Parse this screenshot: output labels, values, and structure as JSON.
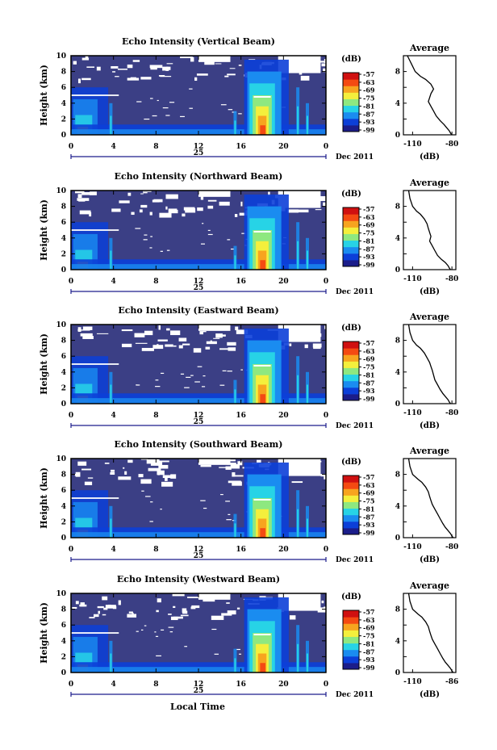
{
  "figure": {
    "month_label": "Dec 2011",
    "x_axis_title": "Local Time",
    "y_axis_title": "Height (km)",
    "cbar_units": "(dB)",
    "avg_xlabel": "(dB)",
    "colors": [
      "#1b1d8a",
      "#0c3fd8",
      "#1a8cf0",
      "#27d3e6",
      "#8ee880",
      "#f4ef3c",
      "#f7a41f",
      "#f44a12",
      "#d01010"
    ],
    "background": "#3b3f85"
  },
  "chart_data": [
    {
      "type": "heatmap",
      "title": "Echo Intensity (Vertical Beam)",
      "xticks": [
        "0",
        "4",
        "8",
        "12",
        "16",
        "20",
        "0"
      ],
      "xlim": [
        0,
        24
      ],
      "date_label": "25",
      "ylabel": "Height (km)",
      "yticks": [
        "0",
        "2",
        "4",
        "6",
        "8",
        "10"
      ],
      "ylim": [
        0,
        10
      ],
      "colorbar": {
        "label": "(dB)",
        "ticks": [
          "-57",
          "-63",
          "-69",
          "-75",
          "-81",
          "-87",
          "-93",
          "-99"
        ]
      },
      "average": {
        "title": "Average",
        "xlabel": "(dB)",
        "xticks": [
          "-110",
          "-80"
        ],
        "x": [
          -114,
          -111,
          -108,
          -104,
          -100,
          -96,
          -94,
          -96,
          -97,
          -98,
          -96,
          -94,
          -92,
          -89,
          -86,
          -84,
          -82,
          -81,
          -80
        ],
        "y": [
          10,
          9,
          8,
          7.4,
          7,
          6.4,
          5.8,
          5.2,
          4.7,
          4.2,
          3.6,
          3,
          2.4,
          1.8,
          1.3,
          0.9,
          0.5,
          0.2,
          0
        ]
      }
    },
    {
      "type": "heatmap",
      "title": "Echo Intensity (Northward Beam)",
      "xticks": [
        "0",
        "4",
        "8",
        "12",
        "16",
        "20",
        "0"
      ],
      "xlim": [
        0,
        24
      ],
      "date_label": "25",
      "ylabel": "Height (km)",
      "yticks": [
        "0",
        "2",
        "4",
        "6",
        "8",
        "10"
      ],
      "ylim": [
        0,
        10
      ],
      "colorbar": {
        "label": "(dB)",
        "ticks": [
          "-57",
          "-63",
          "-69",
          "-75",
          "-81",
          "-87",
          "-93",
          "-99"
        ]
      },
      "average": {
        "title": "Average",
        "xlabel": "(dB)",
        "xticks": [
          "-110",
          "-80"
        ],
        "x": [
          -113,
          -112,
          -110,
          -107,
          -104,
          -101,
          -99,
          -98,
          -97,
          -96,
          -97,
          -95,
          -93,
          -91,
          -88,
          -85,
          -83,
          -82,
          -81
        ],
        "y": [
          10,
          9,
          8,
          7.4,
          7,
          6.4,
          5.8,
          5.2,
          4.7,
          4.2,
          3.6,
          3,
          2.4,
          1.8,
          1.3,
          0.9,
          0.5,
          0.2,
          0
        ]
      }
    },
    {
      "type": "heatmap",
      "title": "Echo Intensity (Eastward Beam)",
      "xticks": [
        "0",
        "4",
        "8",
        "12",
        "16",
        "20",
        "0"
      ],
      "xlim": [
        0,
        24
      ],
      "date_label": "25",
      "ylabel": "Height (km)",
      "yticks": [
        "0",
        "2",
        "4",
        "6",
        "8",
        "10"
      ],
      "ylim": [
        0,
        10
      ],
      "colorbar": {
        "label": "(dB)",
        "ticks": [
          "-57",
          "-63",
          "-69",
          "-75",
          "-81",
          "-87",
          "-93",
          "-99"
        ]
      },
      "average": {
        "title": "Average",
        "xlabel": "(dB)",
        "xticks": [
          "-110",
          "-80"
        ],
        "x": [
          -113,
          -112,
          -110,
          -107,
          -104,
          -101,
          -99,
          -97,
          -96,
          -95,
          -94,
          -93,
          -91,
          -89,
          -87,
          -85,
          -83,
          -82,
          -81
        ],
        "y": [
          10,
          9,
          8,
          7.4,
          7,
          6.4,
          5.8,
          5.2,
          4.7,
          4.2,
          3.6,
          3,
          2.4,
          1.8,
          1.3,
          0.9,
          0.5,
          0.2,
          0
        ]
      }
    },
    {
      "type": "heatmap",
      "title": "Echo Intensity (Southward Beam)",
      "xticks": [
        "0",
        "4",
        "8",
        "12",
        "16",
        "20",
        "0"
      ],
      "xlim": [
        0,
        24
      ],
      "date_label": "25",
      "ylabel": "Height (km)",
      "yticks": [
        "0",
        "2",
        "4",
        "6",
        "8",
        "10"
      ],
      "ylim": [
        0,
        10
      ],
      "colorbar": {
        "label": "(dB)",
        "ticks": [
          "-57",
          "-63",
          "-69",
          "-75",
          "-81",
          "-87",
          "-93",
          "-99"
        ]
      },
      "average": {
        "title": "Average",
        "xlabel": "(dB)",
        "xticks": [
          "-110",
          "-80"
        ],
        "x": [
          -113,
          -112,
          -110,
          -106,
          -103,
          -100,
          -98,
          -97,
          -96,
          -95,
          -93,
          -91,
          -89,
          -87,
          -85,
          -83,
          -81,
          -80,
          -79
        ],
        "y": [
          10,
          9,
          8,
          7.4,
          7,
          6.4,
          5.8,
          5.2,
          4.7,
          4.2,
          3.6,
          3,
          2.4,
          1.8,
          1.3,
          0.9,
          0.5,
          0.2,
          0
        ]
      }
    },
    {
      "type": "heatmap",
      "title": "Echo Intensity (Westward Beam)",
      "xticks": [
        "0",
        "4",
        "8",
        "12",
        "16",
        "20",
        "0"
      ],
      "xlim": [
        0,
        24
      ],
      "date_label": "25",
      "ylabel": "Height (km)",
      "yticks": [
        "0",
        "2",
        "4",
        "6",
        "8",
        "10"
      ],
      "ylim": [
        0,
        10
      ],
      "colorbar": {
        "label": "(dB)",
        "ticks": [
          "-57",
          "-63",
          "-69",
          "-75",
          "-81",
          "-87",
          "-93",
          "-99"
        ]
      },
      "average": {
        "title": "Average",
        "xlabel": "(dB)",
        "xticks": [
          "-110",
          "-86"
        ],
        "x": [
          -113,
          -112,
          -110,
          -106,
          -103,
          -100,
          -98,
          -97,
          -96,
          -95,
          -93,
          -91,
          -89,
          -87,
          -85,
          -83,
          -81,
          -80,
          -79
        ],
        "y": [
          10,
          9,
          8,
          7.4,
          7,
          6.4,
          5.8,
          5.2,
          4.7,
          4.2,
          3.6,
          3,
          2.4,
          1.8,
          1.3,
          0.9,
          0.5,
          0.2,
          0
        ]
      }
    }
  ]
}
